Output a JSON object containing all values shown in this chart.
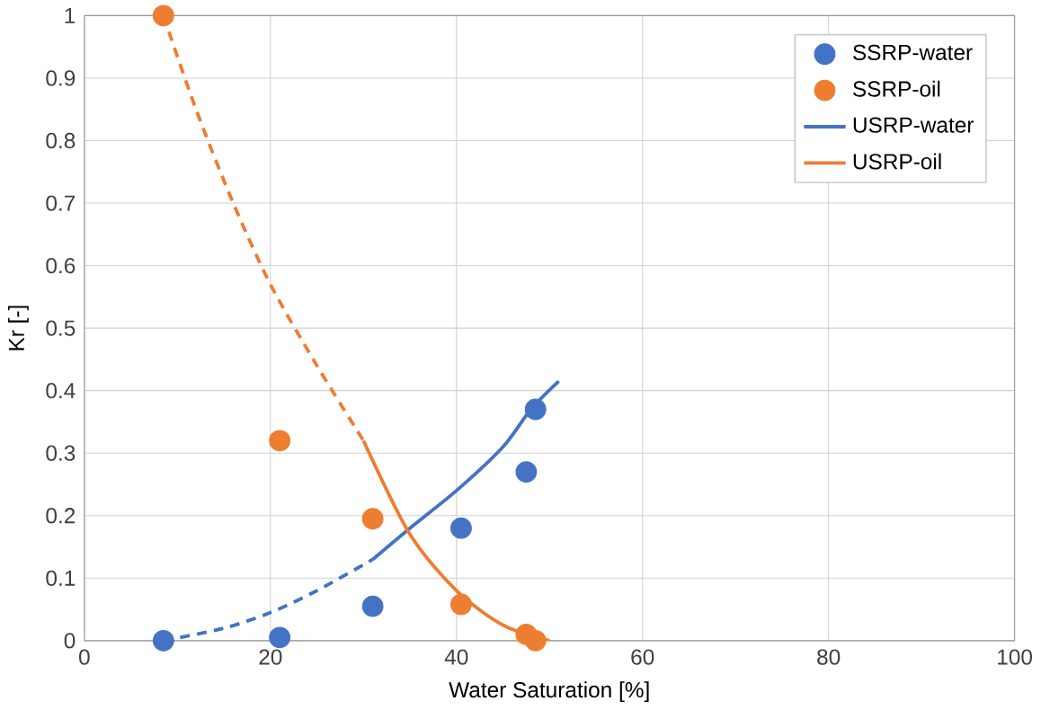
{
  "chart_data": {
    "type": "scatter",
    "xlabel": "Water Saturation [%]",
    "ylabel": "Kr [-]",
    "xlim": [
      0,
      100
    ],
    "ylim": [
      0,
      1
    ],
    "xticks": [
      0,
      20,
      40,
      60,
      80,
      100
    ],
    "yticks": [
      0,
      0.1,
      0.2,
      0.3,
      0.4,
      0.5,
      0.6,
      0.7,
      0.8,
      0.9,
      1
    ],
    "grid": true,
    "legend": "top right",
    "marker": "circle",
    "series": [
      {
        "name": "SSRP-water",
        "color": "#4472c4",
        "x": [
          8.5,
          21,
          31,
          40.5,
          47.5,
          48.5
        ],
        "values": [
          0,
          0.005,
          0.055,
          0.18,
          0.27,
          0.37
        ]
      },
      {
        "name": "SSRP-oil",
        "color": "#ed7d31",
        "x": [
          8.5,
          21,
          31,
          40.5,
          47.5,
          48.5
        ],
        "values": [
          1,
          0.32,
          0.195,
          0.058,
          0.01,
          0
        ]
      },
      {
        "name": "USRP-water",
        "type": "line",
        "marker": "none",
        "line_style": "solid",
        "color": "#4472c4",
        "x": [
          31,
          35,
          40,
          45,
          48,
          51
        ],
        "values": [
          0.13,
          0.18,
          0.24,
          0.31,
          0.37,
          0.415
        ]
      },
      {
        "name": "USRP-oil",
        "type": "line",
        "marker": "none",
        "line_style": "solid",
        "color": "#ed7d31",
        "x": [
          30,
          35,
          40,
          45,
          50
        ],
        "values": [
          0.32,
          0.17,
          0.08,
          0.025,
          0
        ]
      },
      {
        "type": "line",
        "marker": "none",
        "line_style": "dashed",
        "color": "#4472c4",
        "x": [
          8.5,
          15,
          20,
          25,
          31
        ],
        "values": [
          0,
          0.02,
          0.045,
          0.08,
          0.13
        ]
      },
      {
        "type": "line",
        "marker": "none",
        "line_style": "dashed",
        "color": "#ed7d31",
        "x": [
          8.5,
          12,
          16,
          20,
          25,
          30
        ],
        "values": [
          1,
          0.85,
          0.7,
          0.57,
          0.44,
          0.32
        ]
      }
    ]
  }
}
